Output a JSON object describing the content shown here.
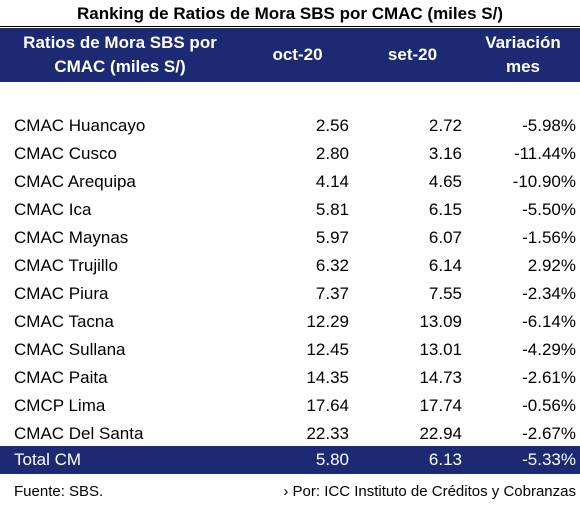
{
  "title": "Ranking de Ratios de Mora SBS por CMAC (miles S/)",
  "header": {
    "col1_line1": "Ratios de Mora SBS por",
    "col1_line2": "CMAC (miles S/)",
    "col2": "oct-20",
    "col3": "set-20",
    "col4_line1": "Variación",
    "col4_line2": "mes"
  },
  "rows": [
    {
      "name": "CMAC Huancayo",
      "oct": "2.56",
      "set": "2.72",
      "var": "-5.98%"
    },
    {
      "name": "CMAC Cusco",
      "oct": "2.80",
      "set": "3.16",
      "var": "-11.44%"
    },
    {
      "name": "CMAC Arequipa",
      "oct": "4.14",
      "set": "4.65",
      "var": "-10.90%"
    },
    {
      "name": "CMAC Ica",
      "oct": "5.81",
      "set": "6.15",
      "var": "-5.50%"
    },
    {
      "name": "CMAC Maynas",
      "oct": "5.97",
      "set": "6.07",
      "var": "-1.56%"
    },
    {
      "name": "CMAC Trujillo",
      "oct": "6.32",
      "set": "6.14",
      "var": "2.92%"
    },
    {
      "name": "CMAC Piura",
      "oct": "7.37",
      "set": "7.55",
      "var": "-2.34%"
    },
    {
      "name": "CMAC Tacna",
      "oct": "12.29",
      "set": "13.09",
      "var": "-6.14%"
    },
    {
      "name": "CMAC Sullana",
      "oct": "12.45",
      "set": "13.01",
      "var": "-4.29%"
    },
    {
      "name": "CMAC Paita",
      "oct": "14.35",
      "set": "14.73",
      "var": "-2.61%"
    },
    {
      "name": "CMCP Lima",
      "oct": "17.64",
      "set": "17.74",
      "var": "-0.56%"
    },
    {
      "name": "CMAC Del Santa",
      "oct": "22.33",
      "set": "22.94",
      "var": "-2.67%"
    }
  ],
  "total": {
    "name": "Total CM",
    "oct": "5.80",
    "set": "6.13",
    "var": "-5.33%"
  },
  "footer": {
    "source": "Fuente: SBS.",
    "by": "› Por: ICC Instituto de Créditos y Cobranzas"
  },
  "colors": {
    "header_bg": "#1b2a72",
    "header_text": "#ffffff"
  }
}
